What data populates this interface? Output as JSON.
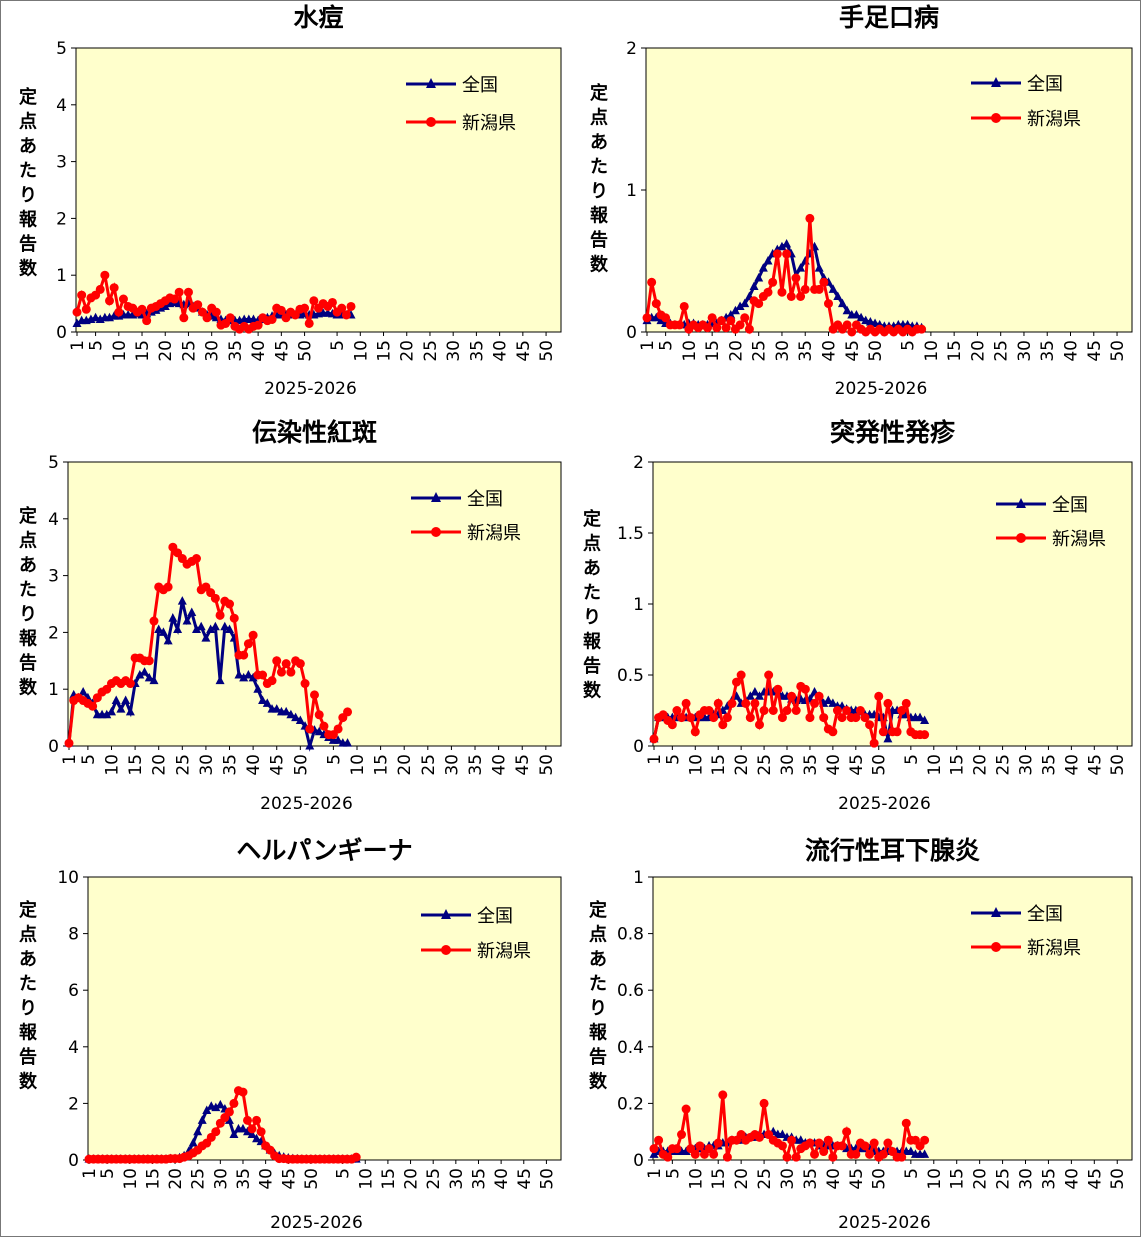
{
  "chart_data": [
    {
      "type": "line",
      "title": "水痘",
      "ylabel": "定点あたり報告数",
      "xlabel": "2025-2026",
      "ylim": [
        0,
        5
      ],
      "yticks": [
        "0",
        "1",
        "2",
        "3",
        "4",
        "5"
      ],
      "xticks": [
        "1",
        "5",
        "10",
        "15",
        "20",
        "25",
        "30",
        "35",
        "40",
        "45",
        "50",
        "5",
        "10",
        "15",
        "20",
        "25",
        "30",
        "35",
        "40",
        "45",
        "50"
      ],
      "legend_position": "top-right",
      "series": [
        {
          "name": "全国",
          "color": "#000080",
          "marker": "triangle",
          "values": [
            0.15,
            0.2,
            0.2,
            0.22,
            0.25,
            0.22,
            0.25,
            0.25,
            0.28,
            0.28,
            0.3,
            0.3,
            0.3,
            0.32,
            0.3,
            0.32,
            0.35,
            0.38,
            0.42,
            0.45,
            0.5,
            0.52,
            0.5,
            0.48,
            0.5,
            0.45,
            0.42,
            0.35,
            0.3,
            0.28,
            0.25,
            0.22,
            0.2,
            0.2,
            0.2,
            0.2,
            0.22,
            0.22,
            0.22,
            0.2,
            0.22,
            0.25,
            0.28,
            0.3,
            0.3,
            0.3,
            0.3,
            0.3,
            0.3,
            0.32,
            0.3,
            0.3,
            0.32,
            0.33,
            0.33,
            0.32,
            0.3,
            0.3,
            0.3,
            0.3
          ]
        },
        {
          "name": "新潟県",
          "color": "#FF0000",
          "marker": "circle",
          "values": [
            0.35,
            0.65,
            0.4,
            0.6,
            0.65,
            0.75,
            1.0,
            0.55,
            0.78,
            0.35,
            0.58,
            0.45,
            0.42,
            0.35,
            0.4,
            0.2,
            0.42,
            0.45,
            0.5,
            0.55,
            0.6,
            0.58,
            0.7,
            0.25,
            0.7,
            0.42,
            0.48,
            0.35,
            0.25,
            0.42,
            0.35,
            0.12,
            0.15,
            0.25,
            0.1,
            0.05,
            0.1,
            0.05,
            0.1,
            0.12,
            0.25,
            0.2,
            0.22,
            0.42,
            0.38,
            0.25,
            0.35,
            0.3,
            0.4,
            0.42,
            0.15,
            0.55,
            0.42,
            0.5,
            0.45,
            0.52,
            0.35,
            0.42,
            0.3,
            0.45
          ]
        }
      ]
    },
    {
      "type": "line",
      "title": "手足口病",
      "ylabel": "定点あたり報告数",
      "xlabel": "2025-2026",
      "ylim": [
        0,
        2
      ],
      "yticks": [
        "0",
        "1",
        "2"
      ],
      "xticks": [
        "1",
        "5",
        "10",
        "15",
        "20",
        "25",
        "30",
        "35",
        "40",
        "45",
        "50",
        "5",
        "10",
        "15",
        "20",
        "25",
        "30",
        "35",
        "40",
        "45",
        "50"
      ],
      "legend_position": "top-right",
      "series": [
        {
          "name": "全国",
          "color": "#000080",
          "marker": "triangle",
          "values": [
            0.08,
            0.1,
            0.1,
            0.08,
            0.06,
            0.06,
            0.05,
            0.05,
            0.05,
            0.06,
            0.06,
            0.05,
            0.05,
            0.05,
            0.06,
            0.06,
            0.08,
            0.1,
            0.12,
            0.15,
            0.18,
            0.2,
            0.25,
            0.32,
            0.38,
            0.45,
            0.5,
            0.55,
            0.58,
            0.6,
            0.62,
            0.55,
            0.4,
            0.45,
            0.5,
            0.55,
            0.6,
            0.45,
            0.38,
            0.35,
            0.3,
            0.25,
            0.2,
            0.15,
            0.12,
            0.12,
            0.1,
            0.08,
            0.07,
            0.06,
            0.05,
            0.04,
            0.04,
            0.04,
            0.05,
            0.05,
            0.05,
            0.04,
            0.04,
            0.03
          ]
        },
        {
          "name": "新潟県",
          "color": "#FF0000",
          "marker": "circle",
          "values": [
            0.1,
            0.35,
            0.2,
            0.12,
            0.1,
            0.05,
            0.05,
            0.05,
            0.18,
            0.02,
            0.05,
            0.03,
            0.05,
            0.03,
            0.1,
            0.03,
            0.08,
            0.03,
            0.08,
            0.02,
            0.05,
            0.1,
            0.02,
            0.22,
            0.2,
            0.25,
            0.28,
            0.35,
            0.55,
            0.28,
            0.55,
            0.25,
            0.38,
            0.25,
            0.3,
            0.8,
            0.3,
            0.3,
            0.35,
            0.2,
            0.02,
            0.05,
            0.02,
            0.05,
            0.0,
            0.05,
            0.02,
            0.0,
            0.02,
            0.0,
            0.02,
            0.0,
            0.02,
            0.0,
            0.02,
            0.0,
            0.02,
            0.0,
            0.02,
            0.02
          ]
        }
      ]
    },
    {
      "type": "line",
      "title": "伝染性紅斑",
      "ylabel": "定点あたり報告数",
      "xlabel": "2025-2026",
      "ylim": [
        0,
        5
      ],
      "yticks": [
        "0",
        "1",
        "2",
        "3",
        "4",
        "5"
      ],
      "xticks": [
        "1",
        "5",
        "10",
        "15",
        "20",
        "25",
        "30",
        "35",
        "40",
        "45",
        "50",
        "5",
        "10",
        "15",
        "20",
        "25",
        "30",
        "35",
        "40",
        "45",
        "50"
      ],
      "legend_position": "top-right",
      "series": [
        {
          "name": "全国",
          "color": "#000080",
          "marker": "triangle",
          "values": [
            0.05,
            0.9,
            0.85,
            0.95,
            0.85,
            0.75,
            0.55,
            0.55,
            0.55,
            0.6,
            0.8,
            0.65,
            0.8,
            0.6,
            1.1,
            1.25,
            1.3,
            1.2,
            1.15,
            2.05,
            2.0,
            1.85,
            2.25,
            2.05,
            2.55,
            2.2,
            2.35,
            2.05,
            2.1,
            1.9,
            2.05,
            2.1,
            1.15,
            2.1,
            2.05,
            1.9,
            1.25,
            1.2,
            1.25,
            1.2,
            1.0,
            0.8,
            0.75,
            0.65,
            0.65,
            0.6,
            0.6,
            0.55,
            0.5,
            0.45,
            0.35,
            0.0,
            0.28,
            0.25,
            0.2,
            0.15,
            0.1,
            0.1,
            0.05,
            0.05
          ]
        },
        {
          "name": "新潟県",
          "color": "#FF0000",
          "marker": "circle",
          "values": [
            0.05,
            0.8,
            0.85,
            0.8,
            0.75,
            0.7,
            0.85,
            0.95,
            1.0,
            1.1,
            1.15,
            1.1,
            1.15,
            1.1,
            1.55,
            1.55,
            1.5,
            1.5,
            2.2,
            2.8,
            2.75,
            2.8,
            3.5,
            3.4,
            3.3,
            3.2,
            3.25,
            3.3,
            2.75,
            2.8,
            2.7,
            2.6,
            2.3,
            2.55,
            2.5,
            2.25,
            1.6,
            1.6,
            1.8,
            1.95,
            1.25,
            1.25,
            1.1,
            1.15,
            1.5,
            1.3,
            1.45,
            1.3,
            1.5,
            1.45,
            1.1,
            0.3,
            0.9,
            0.55,
            0.35,
            0.2,
            0.2,
            0.3,
            0.5,
            0.6
          ]
        }
      ]
    },
    {
      "type": "line",
      "title": "突発性発疹",
      "ylabel": "定点あたり報告数",
      "xlabel": "2025-2026",
      "ylim": [
        0,
        2
      ],
      "yticks": [
        "0",
        "0.5",
        "1",
        "1.5",
        "2"
      ],
      "xticks": [
        "1",
        "5",
        "10",
        "15",
        "20",
        "25",
        "30",
        "35",
        "40",
        "45",
        "50",
        "5",
        "10",
        "15",
        "20",
        "25",
        "30",
        "35",
        "40",
        "45",
        "50"
      ],
      "legend_position": "top-right",
      "series": [
        {
          "name": "全国",
          "color": "#000080",
          "marker": "triangle",
          "values": [
            0.05,
            0.2,
            0.2,
            0.2,
            0.2,
            0.2,
            0.2,
            0.2,
            0.2,
            0.2,
            0.2,
            0.2,
            0.2,
            0.22,
            0.22,
            0.25,
            0.28,
            0.32,
            0.35,
            0.3,
            0.32,
            0.35,
            0.38,
            0.35,
            0.38,
            0.38,
            0.38,
            0.38,
            0.35,
            0.35,
            0.33,
            0.32,
            0.33,
            0.32,
            0.33,
            0.38,
            0.35,
            0.3,
            0.32,
            0.3,
            0.28,
            0.28,
            0.26,
            0.25,
            0.25,
            0.24,
            0.22,
            0.22,
            0.22,
            0.2,
            0.2,
            0.05,
            0.25,
            0.25,
            0.22,
            0.22,
            0.2,
            0.2,
            0.2,
            0.18
          ]
        },
        {
          "name": "新潟県",
          "color": "#FF0000",
          "marker": "circle",
          "values": [
            0.05,
            0.2,
            0.22,
            0.18,
            0.15,
            0.25,
            0.2,
            0.3,
            0.2,
            0.1,
            0.22,
            0.25,
            0.25,
            0.2,
            0.3,
            0.15,
            0.2,
            0.3,
            0.45,
            0.5,
            0.3,
            0.2,
            0.3,
            0.15,
            0.25,
            0.5,
            0.25,
            0.4,
            0.2,
            0.25,
            0.35,
            0.25,
            0.42,
            0.4,
            0.2,
            0.3,
            0.35,
            0.2,
            0.12,
            0.1,
            0.25,
            0.2,
            0.25,
            0.2,
            0.2,
            0.25,
            0.2,
            0.15,
            0.02,
            0.35,
            0.1,
            0.3,
            0.1,
            0.1,
            0.25,
            0.3,
            0.1,
            0.08,
            0.08,
            0.08
          ]
        }
      ]
    },
    {
      "type": "line",
      "title": "ヘルパンギーナ",
      "ylabel": "定点あたり報告数",
      "xlabel": "2025-2026",
      "ylim": [
        0,
        10
      ],
      "yticks": [
        "0",
        "2",
        "4",
        "6",
        "8",
        "10"
      ],
      "xticks": [
        "1",
        "5",
        "10",
        "15",
        "20",
        "25",
        "30",
        "35",
        "40",
        "45",
        "50",
        "5",
        "10",
        "15",
        "20",
        "25",
        "30",
        "35",
        "40",
        "45",
        "50"
      ],
      "legend_position": "top-right",
      "series": [
        {
          "name": "全国",
          "color": "#000080",
          "marker": "triangle",
          "values": [
            0.03,
            0.03,
            0.03,
            0.03,
            0.03,
            0.03,
            0.03,
            0.03,
            0.03,
            0.03,
            0.03,
            0.03,
            0.03,
            0.03,
            0.03,
            0.03,
            0.03,
            0.03,
            0.05,
            0.05,
            0.08,
            0.15,
            0.3,
            0.6,
            1.0,
            1.4,
            1.75,
            1.9,
            1.85,
            1.95,
            1.8,
            1.4,
            0.9,
            1.1,
            1.1,
            1.0,
            0.9,
            0.75,
            0.65,
            0.5,
            0.35,
            0.22,
            0.15,
            0.1,
            0.07,
            0.05,
            0.04,
            0.03,
            0.03,
            0.03,
            0.03,
            0.03,
            0.03,
            0.03,
            0.03,
            0.03,
            0.03,
            0.03,
            0.03,
            0.03
          ]
        },
        {
          "name": "新潟県",
          "color": "#FF0000",
          "marker": "circle",
          "values": [
            0.03,
            0.03,
            0.03,
            0.03,
            0.03,
            0.03,
            0.03,
            0.03,
            0.03,
            0.03,
            0.03,
            0.03,
            0.03,
            0.03,
            0.03,
            0.03,
            0.03,
            0.03,
            0.05,
            0.05,
            0.05,
            0.1,
            0.15,
            0.25,
            0.35,
            0.5,
            0.6,
            0.8,
            1.0,
            1.3,
            1.5,
            1.7,
            2.0,
            2.45,
            2.4,
            1.4,
            1.1,
            1.4,
            1.0,
            0.5,
            0.35,
            0.15,
            0.05,
            0.05,
            0.03,
            0.03,
            0.03,
            0.03,
            0.03,
            0.03,
            0.03,
            0.03,
            0.03,
            0.03,
            0.03,
            0.03,
            0.03,
            0.03,
            0.03,
            0.1
          ]
        }
      ]
    },
    {
      "type": "line",
      "title": "流行性耳下腺炎",
      "ylabel": "定点あたり報告数",
      "xlabel": "2025-2026",
      "ylim": [
        0,
        1
      ],
      "yticks": [
        "0",
        "0.2",
        "0.4",
        "0.6",
        "0.8",
        "1"
      ],
      "xticks": [
        "1",
        "5",
        "10",
        "15",
        "20",
        "25",
        "30",
        "35",
        "40",
        "45",
        "50",
        "5",
        "10",
        "15",
        "20",
        "25",
        "30",
        "35",
        "40",
        "45",
        "50"
      ],
      "legend_position": "top-right",
      "series": [
        {
          "name": "全国",
          "color": "#000080",
          "marker": "triangle",
          "values": [
            0.02,
            0.03,
            0.03,
            0.03,
            0.03,
            0.03,
            0.03,
            0.03,
            0.04,
            0.04,
            0.04,
            0.04,
            0.05,
            0.05,
            0.05,
            0.06,
            0.06,
            0.07,
            0.07,
            0.07,
            0.08,
            0.08,
            0.08,
            0.09,
            0.09,
            0.09,
            0.1,
            0.09,
            0.09,
            0.08,
            0.08,
            0.07,
            0.07,
            0.06,
            0.06,
            0.06,
            0.05,
            0.05,
            0.05,
            0.05,
            0.05,
            0.05,
            0.04,
            0.04,
            0.04,
            0.04,
            0.04,
            0.04,
            0.03,
            0.03,
            0.03,
            0.03,
            0.03,
            0.03,
            0.03,
            0.03,
            0.03,
            0.02,
            0.02,
            0.02
          ]
        },
        {
          "name": "新潟県",
          "color": "#FF0000",
          "marker": "circle",
          "values": [
            0.04,
            0.07,
            0.02,
            0.01,
            0.04,
            0.04,
            0.09,
            0.18,
            0.04,
            0.02,
            0.05,
            0.02,
            0.04,
            0.02,
            0.06,
            0.23,
            0.01,
            0.07,
            0.07,
            0.09,
            0.07,
            0.08,
            0.09,
            0.08,
            0.2,
            0.09,
            0.07,
            0.06,
            0.05,
            0.01,
            0.07,
            0.01,
            0.04,
            0.05,
            0.06,
            0.02,
            0.06,
            0.03,
            0.07,
            0.01,
            0.05,
            0.05,
            0.1,
            0.02,
            0.02,
            0.06,
            0.05,
            0.02,
            0.06,
            0.01,
            0.02,
            0.06,
            0.03,
            0.01,
            0.01,
            0.13,
            0.07,
            0.07,
            0.05,
            0.07
          ]
        }
      ]
    }
  ]
}
